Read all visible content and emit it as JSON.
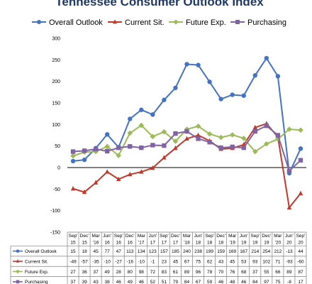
{
  "chart_data": {
    "type": "line",
    "title": "Tennessee Consumer Outlook Index",
    "categories": [
      [
        "Sep'",
        "15"
      ],
      [
        "Dec'",
        "15"
      ],
      [
        "Mar",
        "'16"
      ],
      [
        "Jun'",
        "16"
      ],
      [
        "Sep'",
        "16"
      ],
      [
        "Dec'",
        "16"
      ],
      [
        "Mar",
        "'17"
      ],
      [
        "Jun'",
        "17"
      ],
      [
        "Sep'",
        "17"
      ],
      [
        "Dec'",
        "17"
      ],
      [
        "Mar",
        "'18"
      ],
      [
        "Jun'",
        "18"
      ],
      [
        "Sep'",
        "18"
      ],
      [
        "Dec'",
        "18"
      ],
      [
        "Mar",
        "'19"
      ],
      [
        "Jun'",
        "19"
      ],
      [
        "Sep'",
        "19"
      ],
      [
        "Dec'",
        "19"
      ],
      [
        "Mar",
        "'20"
      ],
      [
        "Jun'",
        "20"
      ],
      [
        "Sep'",
        "20"
      ]
    ],
    "ylim": [
      -150,
      300
    ],
    "yticks": [
      -150,
      -100,
      -50,
      0,
      50,
      100,
      150,
      200,
      250,
      300
    ],
    "grid": false,
    "legend_position": "top",
    "series": [
      {
        "name": "Overall Outlook",
        "color": "#4472c4",
        "marker": "circle",
        "values": [
          15,
          18,
          45,
          77,
          47,
          113,
          134,
          123,
          157,
          185,
          240,
          238,
          199,
          159,
          169,
          167,
          214,
          254,
          212,
          -13,
          44
        ]
      },
      {
        "name": "Current Sit.",
        "color": "#c0392b",
        "marker": "triangle",
        "values": [
          -49,
          -57,
          -35,
          -10,
          -27,
          -16,
          -10,
          -1,
          23,
          45,
          67,
          75,
          62,
          43,
          45,
          53,
          93,
          102,
          71,
          -93,
          -60
        ]
      },
      {
        "name": "Future Exp.",
        "color": "#9bbb59",
        "marker": "diamond",
        "values": [
          27,
          36,
          37,
          49,
          28,
          80,
          98,
          72,
          83,
          61,
          89,
          96,
          78,
          70,
          76,
          68,
          37,
          55,
          66,
          89,
          87
        ]
      },
      {
        "name": "Purchasing",
        "color": "#8064a2",
        "marker": "square",
        "values": [
          37,
          39,
          43,
          38,
          46,
          49,
          46,
          52,
          51,
          79,
          84,
          67,
          59,
          46,
          48,
          46,
          84,
          97,
          75,
          -8,
          17
        ]
      }
    ]
  }
}
